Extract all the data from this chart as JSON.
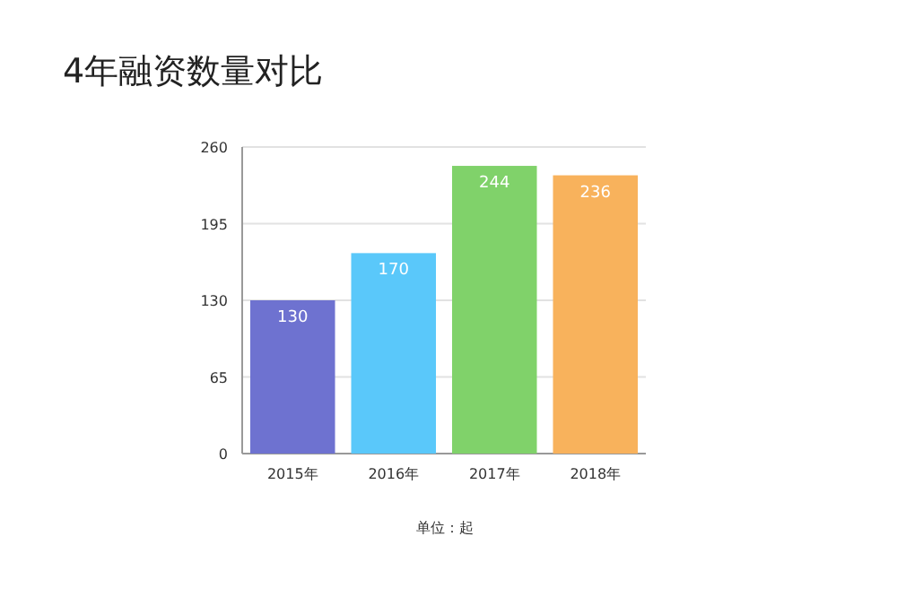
{
  "chart_data": {
    "type": "bar",
    "title": "4年融资数量对比",
    "categories": [
      "2015年",
      "2016年",
      "2017年",
      "2018年"
    ],
    "values": [
      130,
      170,
      244,
      236
    ],
    "colors": [
      "#6e72d0",
      "#5ac8fa",
      "#80d26a",
      "#f8b25c"
    ],
    "ylim": [
      0,
      260
    ],
    "yticks": [
      0,
      65,
      130,
      195,
      260
    ],
    "grid": "y",
    "data_labels": true,
    "annotations": [
      "单位：起"
    ]
  }
}
